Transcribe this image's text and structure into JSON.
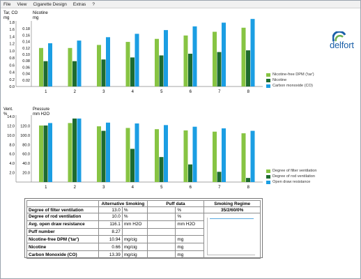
{
  "menu": [
    "File",
    "View",
    "Cigarette Design",
    "Extras",
    "?"
  ],
  "colors": {
    "light_green": "#87c443",
    "dark_green": "#1e6b30",
    "blue": "#1b9ee3",
    "logo_blue": "#1a5fa8"
  },
  "logo": {
    "text": "delfort",
    "icon": "delfort-logo-icon"
  },
  "chart_data": [
    {
      "type": "bar",
      "axis_left_title": "Tar, CO",
      "axis_left_unit": "mg",
      "axis_right_title": "Nicotine",
      "axis_right_unit": "mg",
      "categories": [
        "1",
        "2",
        "3",
        "4",
        "5",
        "6",
        "7",
        "8"
      ],
      "left_ticks": [
        "0.0",
        "0.2",
        "0.4",
        "0.6",
        "0.8",
        "1.0",
        "1.2",
        "1.4",
        "1.6",
        "1.8"
      ],
      "right_ticks": [
        "0.02",
        "0.04",
        "0.06",
        "0.08",
        "0.10",
        "0.12",
        "0.14",
        "0.16",
        "0.18"
      ],
      "series": [
        {
          "name": "Nicotine-free DPM ('tar')",
          "color": "#87c443",
          "values": [
            1.14,
            1.14,
            1.23,
            1.32,
            1.41,
            1.51,
            1.62,
            1.74
          ]
        },
        {
          "name": "Nicotine",
          "color": "#1e6b30",
          "values": [
            0.075,
            0.075,
            0.08,
            0.086,
            0.092,
            0.097,
            0.102,
            0.107
          ]
        },
        {
          "name": "Carbon monoxide (CO)",
          "color": "#1b9ee3",
          "values": [
            1.28,
            1.36,
            1.46,
            1.56,
            1.67,
            1.78,
            1.89,
            2.0
          ]
        }
      ],
      "ylim_left": [
        0,
        1.9
      ],
      "ylim_right": [
        0,
        0.19
      ],
      "legend_position": "right"
    },
    {
      "type": "bar",
      "axis_left_title": "Vent.",
      "axis_left_unit": "%",
      "axis_right_title": "Pressure",
      "axis_right_unit": "mm H2O",
      "categories": [
        "1",
        "2",
        "3",
        "4",
        "5",
        "6",
        "7",
        "8"
      ],
      "left_ticks": [
        "2.0",
        "4.0",
        "6.0",
        "8.0",
        "10.0",
        "12.0",
        "14.0"
      ],
      "right_ticks": [
        "20.0",
        "40.0",
        "60.0",
        "80.0",
        "100.0",
        "120.0"
      ],
      "series": [
        {
          "name": "Degree of filter ventilation",
          "color": "#87c443",
          "values": [
            13.8,
            14.4,
            13.6,
            13.2,
            12.9,
            12.6,
            12.3,
            11.9
          ]
        },
        {
          "name": "Degree of rod ventilation",
          "color": "#1e6b30",
          "values": [
            13.8,
            15.5,
            12.5,
            8.1,
            6.1,
            4.3,
            2.5,
            1.0
          ]
        },
        {
          "name": "Open draw resistance",
          "color": "#1b9ee3",
          "values": [
            14.4,
            15.5,
            14.5,
            14.3,
            13.9,
            13.5,
            13.1,
            12.5
          ]
        }
      ],
      "ylim_left": [
        0,
        16
      ],
      "legend_position": "right"
    }
  ],
  "table": {
    "headers": [
      "",
      "Alternative Smoking",
      "Puff data",
      "Smoking Regime"
    ],
    "regime_value": "35/2/60/0%",
    "rows": [
      {
        "label": "Degree of filter ventilation",
        "value": "13.0",
        "unit": "%",
        "puff_unit": "%"
      },
      {
        "label": "Degree of rod ventilation",
        "value": "10.0",
        "unit": "%",
        "puff_unit": "%"
      },
      {
        "label": "Avg. open draw resistance",
        "value": "116.1",
        "unit": "mm H2O",
        "puff_unit": "mm H2O"
      },
      {
        "label": "Puff number",
        "value": "8.27",
        "unit": "",
        "puff_unit": ""
      },
      {
        "label": "Nicotine-free DPM ('tar')",
        "value": "10.94",
        "unit": "mg/cig",
        "puff_unit": "mg"
      },
      {
        "label": "Nicotine",
        "value": "0.66",
        "unit": "mg/cig",
        "puff_unit": "mg"
      },
      {
        "label": "Carbon Monoxide (CO)",
        "value": "13.39",
        "mg_unit_dummy": "",
        "unit": "mg/cig",
        "puff_unit": "mg"
      }
    ]
  }
}
